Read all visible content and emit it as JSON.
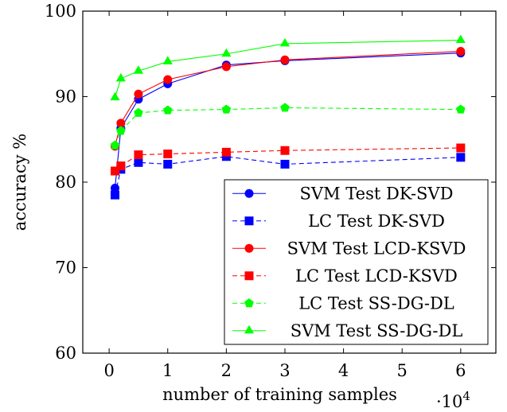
{
  "chart_data": {
    "type": "line",
    "title": "",
    "xlabel": "number of training samples",
    "ylabel": "accuracy %",
    "x_multiplier_label": "·10",
    "x_multiplier_exponent": "4",
    "xlim": [
      -0.45,
      6.6
    ],
    "ylim": [
      60,
      100
    ],
    "xticks": [
      "0",
      "1",
      "2",
      "3",
      "4",
      "5",
      "6"
    ],
    "yticks": [
      "60",
      "70",
      "80",
      "90",
      "100"
    ],
    "xtick_values": [
      0,
      1,
      2,
      3,
      4,
      5,
      6
    ],
    "ytick_values": [
      60,
      70,
      80,
      90,
      100
    ],
    "legend_position": "bottom-right",
    "series": [
      {
        "name": "SVM Test DK-SVD",
        "color": "#0000ff",
        "dash": "solid",
        "marker": "circle",
        "x": [
          0.1,
          0.2,
          0.5,
          1,
          2,
          3,
          6
        ],
        "y": [
          79.3,
          86.3,
          89.7,
          91.5,
          93.7,
          94.2,
          95.1
        ]
      },
      {
        "name": "LC Test DK-SVD",
        "color": "#0000ff",
        "dash": "dashed",
        "marker": "square",
        "x": [
          0.1,
          0.2,
          0.5,
          1,
          2,
          3,
          6
        ],
        "y": [
          78.5,
          81.5,
          82.3,
          82.1,
          83.0,
          82.1,
          82.9
        ]
      },
      {
        "name": "SVM Test LCD-KSVD",
        "color": "#ff0000",
        "dash": "solid",
        "marker": "circle",
        "x": [
          0.1,
          0.2,
          0.5,
          1,
          2,
          3,
          6
        ],
        "y": [
          84.2,
          86.9,
          90.3,
          92.0,
          93.5,
          94.3,
          95.3
        ]
      },
      {
        "name": "LC Test LCD-KSVD",
        "color": "#ff0000",
        "dash": "dashed",
        "marker": "square",
        "x": [
          0.1,
          0.2,
          0.5,
          1,
          2,
          3,
          6
        ],
        "y": [
          81.3,
          81.9,
          83.2,
          83.3,
          83.5,
          83.7,
          84.0
        ]
      },
      {
        "name": "LC Test SS-DG-DL",
        "color": "#00ff00",
        "dash": "dashed",
        "marker": "pentagon",
        "x": [
          0.1,
          0.2,
          0.5,
          1,
          2,
          3,
          6
        ],
        "y": [
          84.3,
          86.0,
          88.1,
          88.4,
          88.5,
          88.7,
          88.5
        ]
      },
      {
        "name": "SVM Test SS-DG-DL",
        "color": "#00ff00",
        "dash": "solid",
        "marker": "triangle",
        "x": [
          0.1,
          0.2,
          0.5,
          1,
          2,
          3,
          6
        ],
        "y": [
          89.9,
          92.1,
          93.0,
          94.1,
          95.0,
          96.2,
          96.6
        ]
      }
    ]
  }
}
